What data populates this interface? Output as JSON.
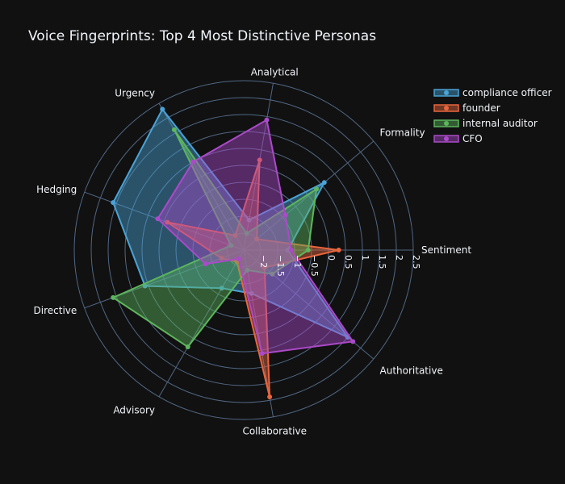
{
  "chart_data": {
    "type": "radar",
    "title": "Voice Fingerprints: Top 4 Most Distinctive Personas",
    "axes": [
      "Sentiment",
      "Formality",
      "Analytical",
      "Urgency",
      "Hedging",
      "Directive",
      "Advisory",
      "Collaborative",
      "Authoritative"
    ],
    "radial_range": [
      -2.5,
      2.5
    ],
    "radial_ticks": [
      -2,
      -1.5,
      -1,
      -0.5,
      0,
      0.5,
      1,
      1.5,
      2,
      2.5
    ],
    "radial_tick_labels": [
      "−2",
      "−1.5",
      "−1",
      "−0.5",
      "0",
      "0.5",
      "1",
      "1.5",
      "2",
      "2.5"
    ],
    "legend_position": "top-right",
    "series": [
      {
        "name": "compliance officer",
        "color": "#4aa3d6",
        "values": [
          -1.2,
          0.6,
          -1.6,
          2.3,
          1.6,
          0.6,
          -1.2,
          -1.2,
          1.5
        ]
      },
      {
        "name": "founder",
        "color": "#e8663d",
        "values": [
          0.3,
          -2.0,
          0.2,
          -2.0,
          -0.1,
          -1.8,
          -2.1,
          1.9,
          -1.7
        ]
      },
      {
        "name": "internal auditor",
        "color": "#5db65d",
        "values": [
          -0.6,
          0.3,
          -2.0,
          1.6,
          -2.1,
          1.6,
          0.8,
          -1.9,
          -1.4
        ]
      },
      {
        "name": "CFO",
        "color": "#ab4ac9",
        "values": [
          -1.1,
          -0.9,
          1.4,
          0.5,
          0.2,
          -1.3,
          -2.2,
          0.6,
          1.7
        ]
      }
    ]
  }
}
